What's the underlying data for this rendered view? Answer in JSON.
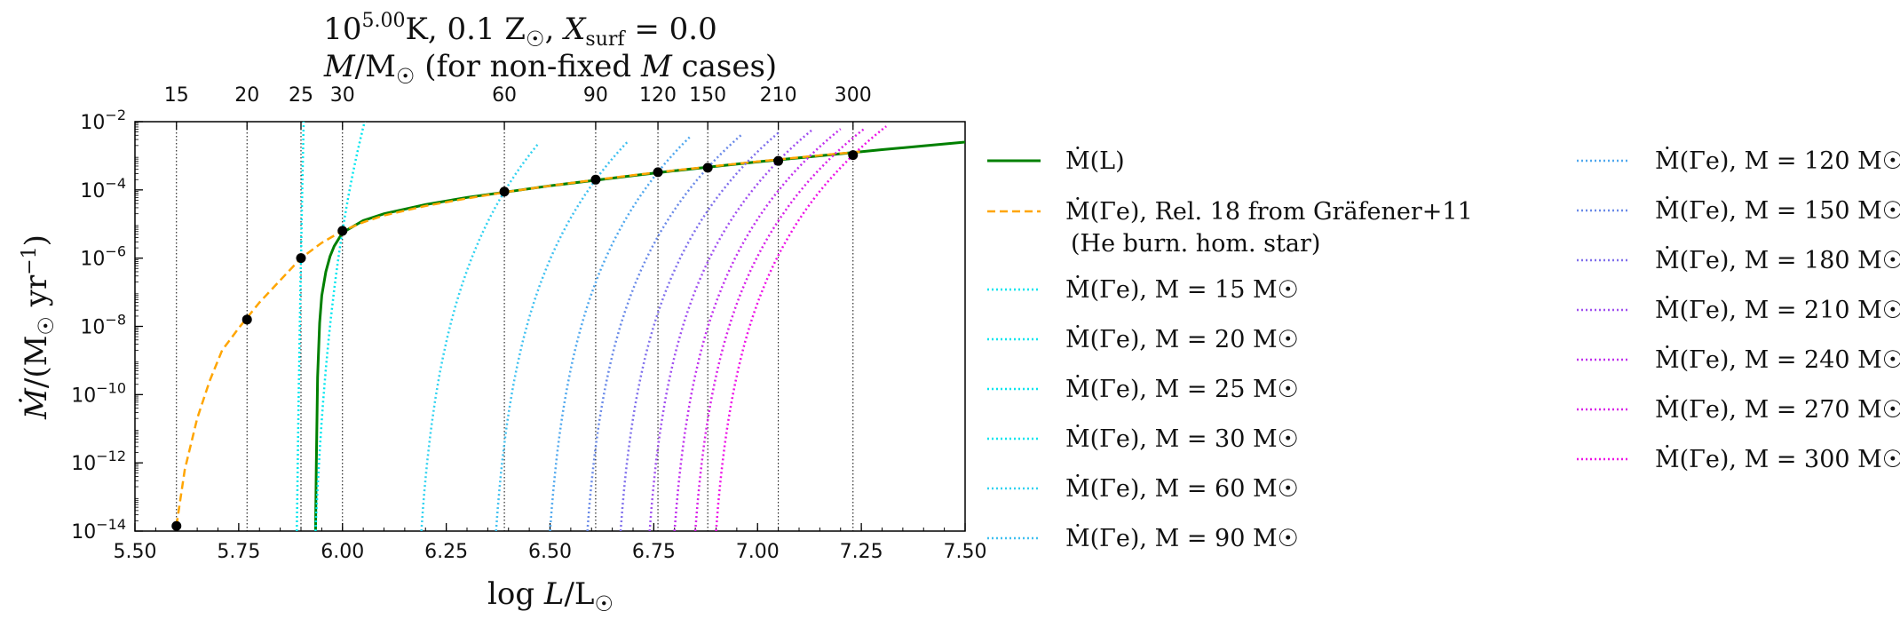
{
  "chart_data": {
    "type": "line",
    "title_line1": "10^5.00 K, 0.1 Z☉, X_surf = 0.0",
    "title_line2": "M/M☉  (for non-fixed M cases)",
    "xlabel": "log L/L☉",
    "ylabel": "Ṁ/(M☉ yr⁻¹)",
    "xlim": [
      5.5,
      7.5
    ],
    "ylim_log10": [
      -14,
      -2
    ],
    "y_scale": "log",
    "x_ticks": [
      "5.50",
      "5.75",
      "6.00",
      "6.25",
      "6.50",
      "6.75",
      "7.00",
      "7.25",
      "7.50"
    ],
    "y_ticks": [
      {
        "base": "10",
        "exp": "−2",
        "value": -2
      },
      {
        "base": "10",
        "exp": "−4",
        "value": -4
      },
      {
        "base": "10",
        "exp": "−6",
        "value": -6
      },
      {
        "base": "10",
        "exp": "−8",
        "value": -8
      },
      {
        "base": "10",
        "exp": "−10",
        "value": -10
      },
      {
        "base": "10",
        "exp": "−12",
        "value": -12
      },
      {
        "base": "10",
        "exp": "−14",
        "value": -14
      }
    ],
    "top_axis": {
      "masses": [
        "15",
        "20",
        "25",
        "30",
        "60",
        "90",
        "120",
        "150",
        "210",
        "300"
      ],
      "logL": [
        5.6,
        5.77,
        5.9,
        6.0,
        6.39,
        6.61,
        6.76,
        6.88,
        7.05,
        7.23
      ]
    },
    "intersection_points": {
      "logL": [
        5.6,
        5.77,
        5.9,
        6.0,
        6.39,
        6.61,
        6.76,
        6.88,
        7.05,
        7.23
      ],
      "logMdot": [
        -13.85,
        -7.8,
        -6.0,
        -5.2,
        -4.05,
        -3.7,
        -3.48,
        -3.35,
        -3.15,
        -2.98
      ]
    },
    "series": [
      {
        "name": "Ṁ(L)",
        "style": "solid",
        "color": "#008000",
        "x": [
          5.935,
          5.937,
          5.94,
          5.945,
          5.95,
          5.96,
          5.97,
          5.98,
          6.0,
          6.05,
          6.1,
          6.2,
          6.3,
          6.4,
          6.5,
          6.6,
          6.7,
          6.8,
          6.9,
          7.0,
          7.1,
          7.2,
          7.3,
          7.4,
          7.5
        ],
        "y": [
          -14,
          -12,
          -9.5,
          -7.9,
          -7.1,
          -6.4,
          -5.95,
          -5.65,
          -5.25,
          -4.9,
          -4.7,
          -4.43,
          -4.22,
          -4.05,
          -3.88,
          -3.73,
          -3.58,
          -3.44,
          -3.31,
          -3.18,
          -3.06,
          -2.94,
          -2.82,
          -2.71,
          -2.6
        ]
      },
      {
        "name": "Ṁ(Γe), Rel. 18 from Gräfener+11",
        "name_line2": "(He burn. hom. star)",
        "style": "dashed",
        "color": "#ffa500",
        "x": [
          5.6,
          5.62,
          5.65,
          5.68,
          5.71,
          5.75,
          5.8,
          5.85,
          5.9,
          5.95,
          6.0,
          6.05,
          6.1,
          6.2,
          6.3,
          6.4,
          6.5,
          6.6,
          6.7,
          6.8,
          6.9,
          7.0,
          7.1,
          7.2,
          7.25
        ],
        "y": [
          -13.85,
          -12.2,
          -10.7,
          -9.6,
          -8.7,
          -8.05,
          -7.3,
          -6.65,
          -6.0,
          -5.55,
          -5.2,
          -4.95,
          -4.75,
          -4.47,
          -4.25,
          -4.05,
          -3.88,
          -3.72,
          -3.57,
          -3.43,
          -3.3,
          -3.17,
          -3.05,
          -2.93,
          -2.88
        ]
      },
      {
        "name": "Ṁ(Γe), M = 15 M☉",
        "style": "dotted",
        "color": "#00e5ee",
        "base": 5.6,
        "yref": -13.85,
        "x0": 5.72
      },
      {
        "name": "Ṁ(Γe), M = 20 M☉",
        "style": "dotted",
        "color": "#00e5ee",
        "base": 5.77,
        "yref": -7.8,
        "x0": 5.82
      },
      {
        "name": "Ṁ(Γe), M = 25 M☉",
        "style": "dotted",
        "color": "#00e5ee",
        "base": 5.9,
        "yref": -6.0,
        "x0": 5.89
      },
      {
        "name": "Ṁ(Γe), M = 30 M☉",
        "style": "dotted",
        "color": "#00e5ee",
        "base": 6.0,
        "yref": -5.2,
        "x0": 5.935
      },
      {
        "name": "Ṁ(Γe), M = 60 M☉",
        "style": "dotted",
        "color": "#30d2f0",
        "base": 6.39,
        "yref": -4.05,
        "x0": 6.19
      },
      {
        "name": "Ṁ(Γe), M = 90 M☉",
        "style": "dotted",
        "color": "#3fc0f0",
        "base": 6.61,
        "yref": -3.7,
        "x0": 6.37
      },
      {
        "name": "Ṁ(Γe), M = 120 M☉",
        "style": "dotted",
        "color": "#50a8ee",
        "base": 6.76,
        "yref": -3.48,
        "x0": 6.5
      },
      {
        "name": "Ṁ(Γe), M = 150 M☉",
        "style": "dotted",
        "color": "#6a8ae8",
        "base": 6.88,
        "yref": -3.35,
        "x0": 6.59
      },
      {
        "name": "Ṁ(Γe), M = 180 M☉",
        "style": "dotted",
        "color": "#8070ec",
        "base": 6.97,
        "yref": -3.25,
        "x0": 6.67
      },
      {
        "name": "Ṁ(Γe), M = 210 M☉",
        "style": "dotted",
        "color": "#a050f0",
        "base": 7.05,
        "yref": -3.15,
        "x0": 6.74
      },
      {
        "name": "Ṁ(Γe), M = 240 M☉",
        "style": "dotted",
        "color": "#c030ee",
        "base": 7.12,
        "yref": -3.08,
        "x0": 6.8
      },
      {
        "name": "Ṁ(Γe), M = 270 M☉",
        "style": "dotted",
        "color": "#d820e8",
        "base": 7.18,
        "yref": -3.02,
        "x0": 6.85
      },
      {
        "name": "Ṁ(Γe), M = 300 M☉",
        "style": "dotted",
        "color": "#ee10e6",
        "base": 7.23,
        "yref": -2.98,
        "x0": 6.9
      }
    ],
    "legend_placement": "right, two columns"
  }
}
